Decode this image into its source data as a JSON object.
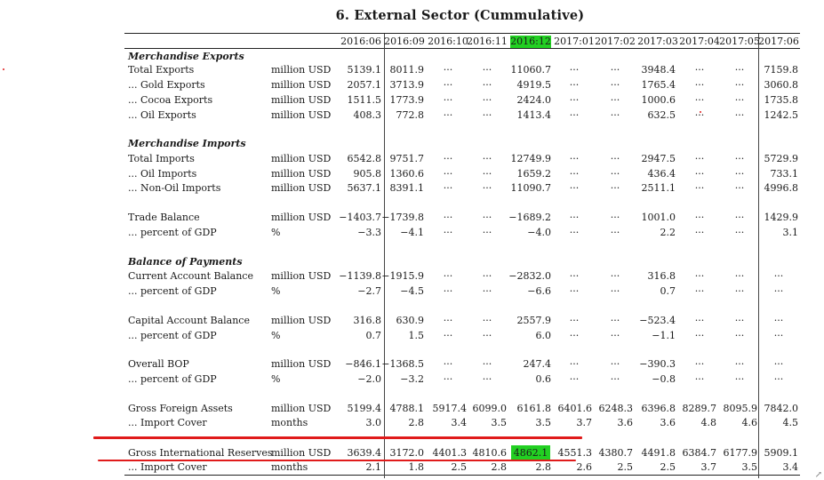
{
  "title": "6. External Sector (Cummulative)",
  "columns": [
    "2016:06",
    "2016:09",
    "2016:10",
    "2016:11",
    "2016:12",
    "2017:01",
    "2017:02",
    "2017:03",
    "2017:04",
    "2017:05",
    "2017:06"
  ],
  "highlight_color": "#22d022",
  "annotation_color": "#e01b1b",
  "rows": [
    {
      "label": "Merchandise Exports",
      "section": true
    },
    {
      "label": "Total Exports",
      "unit": "million USD",
      "values": [
        "5139.1",
        "8011.9",
        "···",
        "···",
        "11060.7",
        "···",
        "···",
        "3948.4",
        "···",
        "···",
        "7159.8"
      ]
    },
    {
      "label": "... Gold Exports",
      "unit": "million USD",
      "values": [
        "2057.1",
        "3713.9",
        "···",
        "···",
        "4919.5",
        "···",
        "···",
        "1765.4",
        "···",
        "···",
        "3060.8"
      ]
    },
    {
      "label": "... Cocoa Exports",
      "unit": "million USD",
      "values": [
        "1511.5",
        "1773.9",
        "···",
        "···",
        "2424.0",
        "···",
        "···",
        "1000.6",
        "···",
        "···",
        "1735.8"
      ]
    },
    {
      "label": "... Oil Exports",
      "unit": "million USD",
      "values": [
        "408.3",
        "772.8",
        "···",
        "···",
        "1413.4",
        "···",
        "···",
        "632.5",
        "···",
        "···",
        "1242.5"
      ]
    },
    {
      "label": "Merchandise Imports",
      "section": true
    },
    {
      "label": "Total Imports",
      "unit": "million USD",
      "values": [
        "6542.8",
        "9751.7",
        "···",
        "···",
        "12749.9",
        "···",
        "···",
        "2947.5",
        "···",
        "···",
        "5729.9"
      ]
    },
    {
      "label": "... Oil Imports",
      "unit": "million USD",
      "values": [
        "905.8",
        "1360.6",
        "···",
        "···",
        "1659.2",
        "···",
        "···",
        "436.4",
        "···",
        "···",
        "733.1"
      ]
    },
    {
      "label": "... Non-Oil Imports",
      "unit": "million USD",
      "values": [
        "5637.1",
        "8391.1",
        "···",
        "···",
        "11090.7",
        "···",
        "···",
        "2511.1",
        "···",
        "···",
        "4996.8"
      ]
    },
    {
      "label": "Trade Balance",
      "unit": "million USD",
      "values": [
        "−1403.7",
        "−1739.8",
        "···",
        "···",
        "−1689.2",
        "···",
        "···",
        "1001.0",
        "···",
        "···",
        "1429.9"
      ]
    },
    {
      "label": "... percent of GDP",
      "unit": "%",
      "values": [
        "−3.3",
        "−4.1",
        "···",
        "···",
        "−4.0",
        "···",
        "···",
        "2.2",
        "···",
        "···",
        "3.1"
      ]
    },
    {
      "label": "Balance of Payments",
      "section": true
    },
    {
      "label": "Current Account Balance",
      "unit": "million USD",
      "values": [
        "−1139.8",
        "−1915.9",
        "···",
        "···",
        "−2832.0",
        "···",
        "···",
        "316.8",
        "···",
        "···",
        "···"
      ]
    },
    {
      "label": "... percent of GDP",
      "unit": "%",
      "values": [
        "−2.7",
        "−4.5",
        "···",
        "···",
        "−6.6",
        "···",
        "···",
        "0.7",
        "···",
        "···",
        "···"
      ]
    },
    {
      "label": "Capital Account Balance",
      "unit": "million USD",
      "values": [
        "316.8",
        "630.9",
        "···",
        "···",
        "2557.9",
        "···",
        "···",
        "−523.4",
        "···",
        "···",
        "···"
      ]
    },
    {
      "label": "... percent of GDP",
      "unit": "%",
      "values": [
        "0.7",
        "1.5",
        "···",
        "···",
        "6.0",
        "···",
        "···",
        "−1.1",
        "···",
        "···",
        "···"
      ]
    },
    {
      "label": "Overall BOP",
      "unit": "million USD",
      "values": [
        "−846.1",
        "−1368.5",
        "···",
        "···",
        "247.4",
        "···",
        "···",
        "−390.3",
        "···",
        "···",
        "···"
      ]
    },
    {
      "label": "... percent of GDP",
      "unit": "%",
      "values": [
        "−2.0",
        "−3.2",
        "···",
        "···",
        "0.6",
        "···",
        "···",
        "−0.8",
        "···",
        "···",
        "···"
      ]
    },
    {
      "label": "Gross Foreign Assets",
      "unit": "million USD",
      "values": [
        "5199.4",
        "4788.1",
        "5917.4",
        "6099.0",
        "6161.8",
        "6401.6",
        "6248.3",
        "6396.8",
        "8289.7",
        "8095.9",
        "7842.0"
      ]
    },
    {
      "label": "... Import Cover",
      "unit": "months",
      "values": [
        "3.0",
        "2.8",
        "3.4",
        "3.5",
        "3.5",
        "3.7",
        "3.6",
        "3.6",
        "4.8",
        "4.6",
        "4.5"
      ]
    },
    {
      "label": "Gross International Reserves",
      "unit": "million USD",
      "values": [
        "3639.4",
        "3172.0",
        "4401.3",
        "4810.6",
        "4862.1",
        "4551.3",
        "4380.7",
        "4491.8",
        "6384.7",
        "6177.9",
        "5909.1"
      ]
    },
    {
      "label": "... Import Cover",
      "unit": "months",
      "values": [
        "2.1",
        "1.8",
        "2.5",
        "2.8",
        "2.8",
        "2.6",
        "2.5",
        "2.5",
        "3.7",
        "3.5",
        "3.4"
      ]
    }
  ]
}
